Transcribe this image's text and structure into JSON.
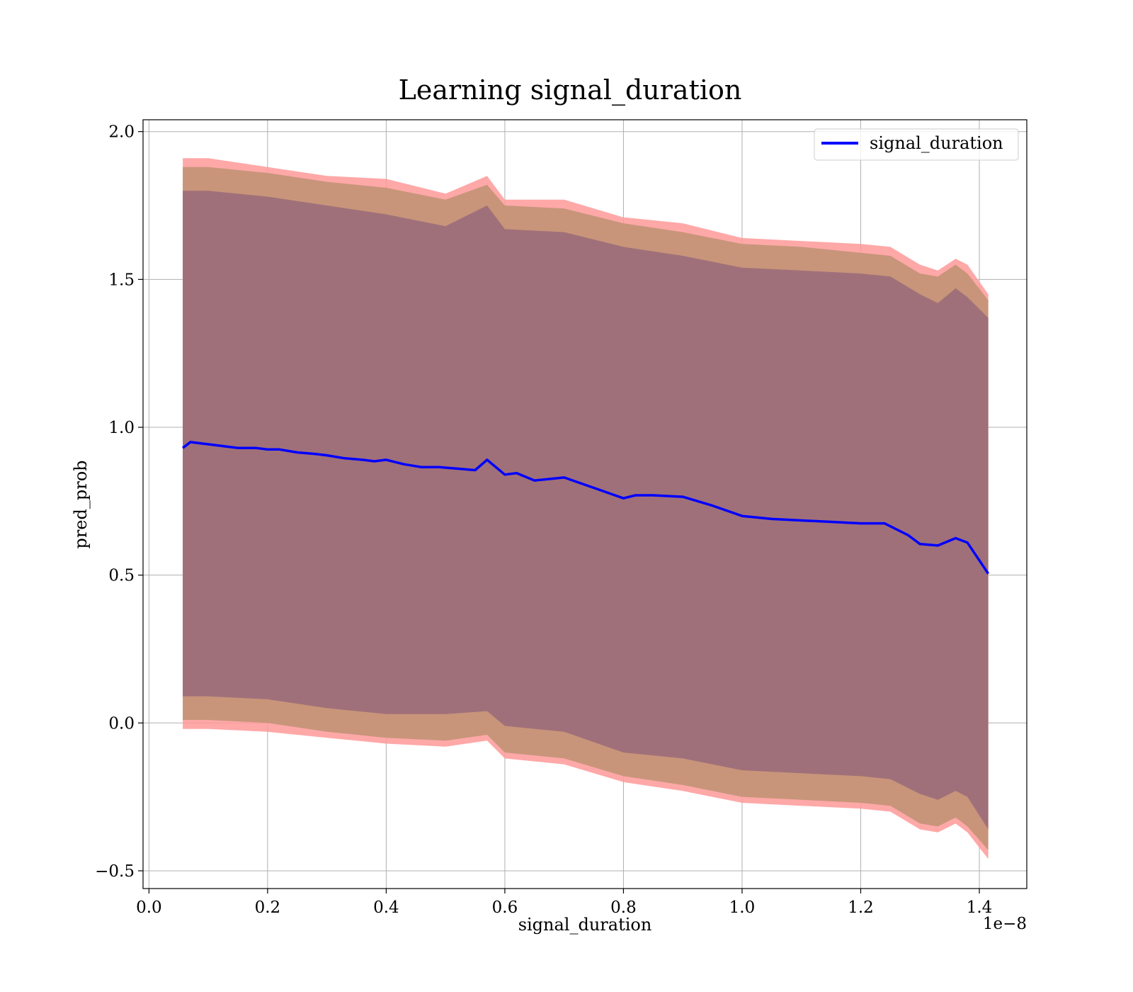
{
  "chart_data": {
    "type": "line",
    "title": "Learning signal_duration",
    "xlabel": "signal_duration",
    "ylabel": "pred_prob",
    "x_offset_text": "1e−8",
    "xlim": [
      -0.01,
      1.48
    ],
    "ylim": [
      -0.56,
      2.04
    ],
    "x_ticks": [
      0.0,
      0.2,
      0.4,
      0.6,
      0.8,
      1.0,
      1.2,
      1.4
    ],
    "x_tick_labels": [
      "0.0",
      "0.2",
      "0.4",
      "0.6",
      "0.8",
      "1.0",
      "1.2",
      "1.4"
    ],
    "y_ticks": [
      -0.5,
      0.0,
      0.5,
      1.0,
      1.5,
      2.0
    ],
    "y_tick_labels": [
      "−0.5",
      "0.0",
      "0.5",
      "1.0",
      "1.5",
      "2.0"
    ],
    "grid": true,
    "legend": {
      "placement": "upper-right",
      "entries": [
        "signal_duration"
      ]
    },
    "colors": {
      "line": "#0000ff",
      "band_inner": "#a0707a",
      "band_middle": "#c8957a",
      "band_outer": "#ff9999"
    },
    "series": [
      {
        "name": "signal_duration",
        "x": [
          0.057,
          0.07,
          0.09,
          0.11,
          0.13,
          0.15,
          0.18,
          0.2,
          0.22,
          0.25,
          0.28,
          0.3,
          0.33,
          0.36,
          0.38,
          0.4,
          0.43,
          0.46,
          0.49,
          0.52,
          0.55,
          0.57,
          0.6,
          0.62,
          0.65,
          0.7,
          0.75,
          0.8,
          0.82,
          0.85,
          0.9,
          0.95,
          1.0,
          1.05,
          1.1,
          1.15,
          1.2,
          1.24,
          1.28,
          1.3,
          1.33,
          1.36,
          1.38,
          1.415
        ],
        "y": [
          0.93,
          0.95,
          0.945,
          0.94,
          0.935,
          0.93,
          0.93,
          0.925,
          0.925,
          0.915,
          0.91,
          0.905,
          0.895,
          0.89,
          0.885,
          0.89,
          0.875,
          0.865,
          0.865,
          0.86,
          0.855,
          0.89,
          0.84,
          0.845,
          0.82,
          0.83,
          0.795,
          0.76,
          0.77,
          0.77,
          0.765,
          0.735,
          0.7,
          0.69,
          0.685,
          0.68,
          0.675,
          0.675,
          0.635,
          0.605,
          0.6,
          0.625,
          0.61,
          0.505
        ]
      }
    ],
    "bands": [
      {
        "x": [
          0.057,
          0.1,
          0.2,
          0.3,
          0.4,
          0.5,
          0.57,
          0.6,
          0.7,
          0.8,
          0.9,
          1.0,
          1.1,
          1.2,
          1.25,
          1.3,
          1.33,
          1.36,
          1.38,
          1.415
        ],
        "upper_outer": [
          1.91,
          1.91,
          1.88,
          1.85,
          1.84,
          1.79,
          1.85,
          1.77,
          1.77,
          1.71,
          1.69,
          1.64,
          1.63,
          1.62,
          1.61,
          1.55,
          1.53,
          1.57,
          1.55,
          1.45
        ],
        "upper_mid": [
          1.88,
          1.88,
          1.86,
          1.83,
          1.81,
          1.77,
          1.82,
          1.75,
          1.74,
          1.69,
          1.66,
          1.62,
          1.61,
          1.59,
          1.58,
          1.52,
          1.51,
          1.55,
          1.52,
          1.43
        ],
        "upper_inner": [
          1.8,
          1.8,
          1.78,
          1.75,
          1.72,
          1.68,
          1.75,
          1.67,
          1.66,
          1.61,
          1.58,
          1.54,
          1.53,
          1.52,
          1.51,
          1.45,
          1.42,
          1.47,
          1.44,
          1.37
        ],
        "lower_inner": [
          0.09,
          0.09,
          0.08,
          0.05,
          0.03,
          0.03,
          0.04,
          -0.01,
          -0.03,
          -0.1,
          -0.12,
          -0.16,
          -0.17,
          -0.18,
          -0.19,
          -0.24,
          -0.26,
          -0.23,
          -0.25,
          -0.36
        ],
        "lower_mid": [
          0.01,
          0.01,
          0.0,
          -0.03,
          -0.05,
          -0.06,
          -0.04,
          -0.1,
          -0.12,
          -0.18,
          -0.21,
          -0.25,
          -0.26,
          -0.27,
          -0.28,
          -0.34,
          -0.35,
          -0.32,
          -0.35,
          -0.43
        ],
        "lower_outer": [
          -0.02,
          -0.02,
          -0.03,
          -0.05,
          -0.07,
          -0.08,
          -0.06,
          -0.12,
          -0.14,
          -0.2,
          -0.23,
          -0.27,
          -0.28,
          -0.29,
          -0.3,
          -0.36,
          -0.37,
          -0.34,
          -0.37,
          -0.46
        ]
      }
    ]
  }
}
